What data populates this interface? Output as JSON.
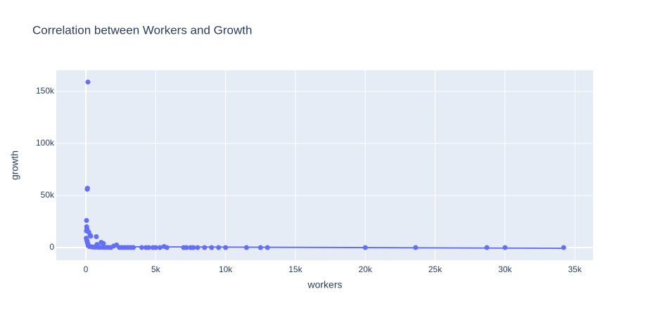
{
  "chart_data": {
    "type": "scatter",
    "title": "Correlation between Workers and Growth",
    "x_label": "workers",
    "y_label": "growth",
    "xlim": [
      -2115,
      36300
    ],
    "ylim": [
      -12160,
      170270
    ],
    "xticks": [
      0,
      {
        "value": 5000,
        "label": "5k"
      },
      {
        "value": 10000,
        "label": "10k"
      },
      {
        "value": 15000,
        "label": "15k"
      },
      {
        "value": 20000,
        "label": "20k"
      },
      {
        "value": 25000,
        "label": "25k"
      },
      {
        "value": 30000,
        "label": "30k"
      },
      {
        "value": 35000,
        "label": "35k"
      }
    ],
    "yticks": [
      0,
      {
        "value": 50000,
        "label": "50k"
      },
      {
        "value": 100000,
        "label": "100k"
      },
      {
        "value": 150000,
        "label": "150k"
      }
    ],
    "grid": true,
    "series": [
      {
        "color": "#636efa",
        "mode": "markers",
        "x": [
          150,
          120,
          100,
          50,
          60,
          80,
          40,
          200,
          300,
          350,
          750,
          1100,
          1250,
          800,
          2200,
          2000,
          5600,
          30,
          70,
          90,
          110,
          130,
          160,
          180,
          220,
          250,
          400,
          450,
          500,
          600,
          700,
          900,
          1000,
          1200,
          1400,
          1600,
          1800,
          2400,
          2600,
          2800,
          3000,
          3200,
          3400,
          4000,
          4300,
          4500,
          4800,
          5000,
          5300,
          5800,
          7000,
          7200,
          7500,
          7700,
          8000,
          8500,
          9000,
          9500,
          10000,
          11500,
          12500,
          13000,
          20000,
          23600,
          28700,
          30000,
          34200
        ],
        "values": [
          159000,
          57000,
          56000,
          26000,
          20000,
          18000,
          16000,
          15000,
          12000,
          11000,
          10500,
          5000,
          4000,
          3000,
          2500,
          1500,
          1000,
          9000,
          7000,
          6000,
          5000,
          4000,
          3000,
          2000,
          1500,
          1000,
          800,
          600,
          500,
          400,
          300,
          300,
          200,
          200,
          150,
          150,
          100,
          100,
          80,
          80,
          60,
          60,
          50,
          50,
          40,
          40,
          30,
          30,
          20,
          20,
          10,
          10,
          10,
          5,
          5,
          5,
          0,
          0,
          0,
          0,
          0,
          0,
          0,
          0,
          0,
          0,
          0
        ]
      },
      {
        "color": "#636efa",
        "mode": "lines",
        "x": [
          0,
          34200
        ],
        "values": [
          900,
          -700
        ]
      }
    ]
  }
}
